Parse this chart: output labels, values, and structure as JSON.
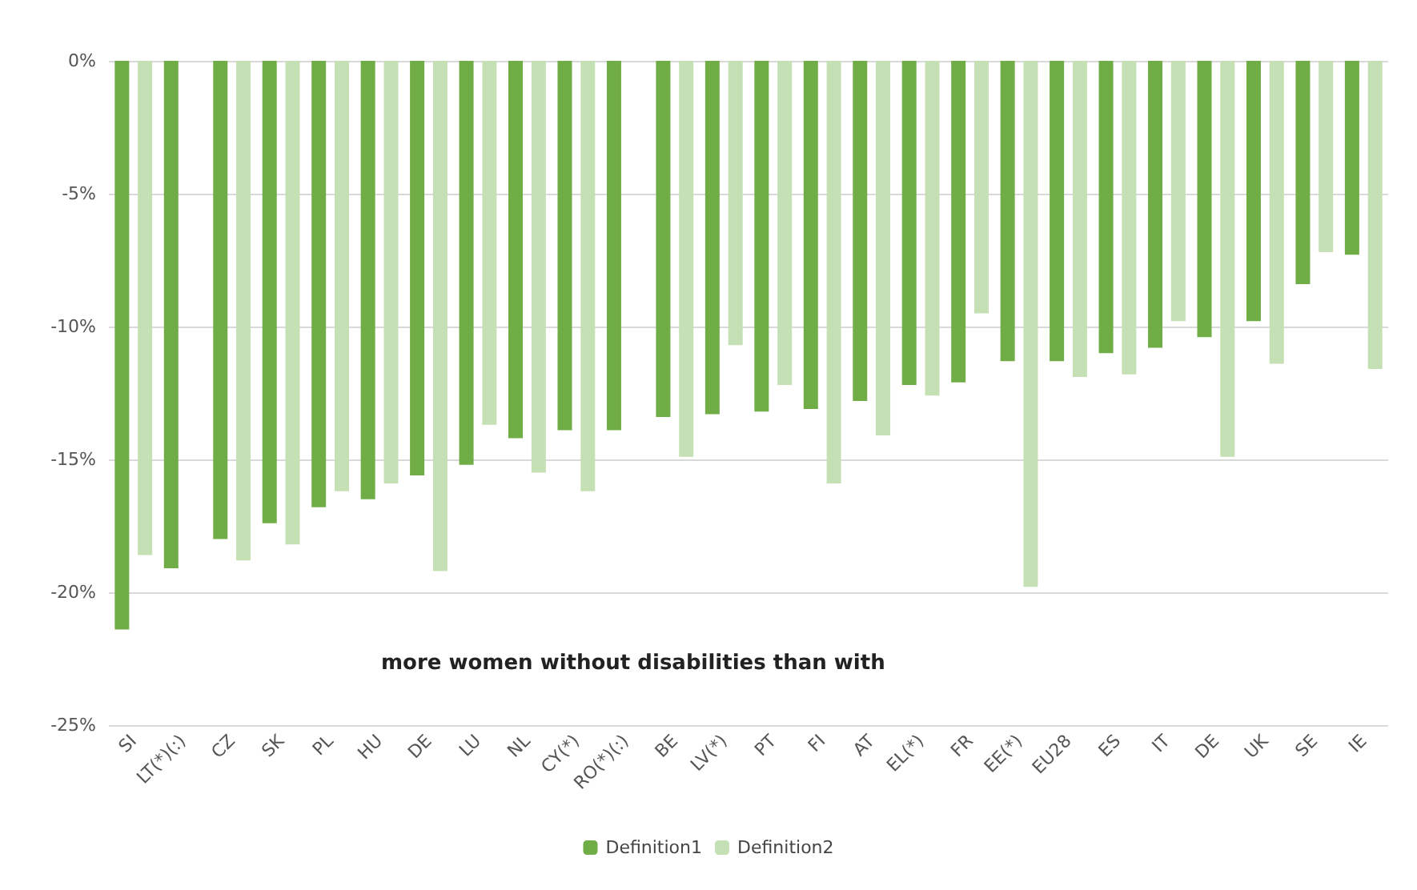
{
  "chart_data": {
    "type": "bar",
    "categories": [
      "SI",
      "LT(*)(:)",
      "CZ",
      "SK",
      "PL",
      "HU",
      "DE",
      "LU",
      "NL",
      "CY(*)",
      "RO(*)(:)",
      "BE",
      "LV(*)",
      "PT",
      "FI",
      "AT",
      "EL(*)",
      "FR",
      "EE(*)",
      "EU28",
      "ES",
      "IT",
      "DE",
      "UK",
      "SE",
      "IE"
    ],
    "series": [
      {
        "name": "Definition1",
        "color": "#70ad47",
        "values": [
          -21.4,
          -19.1,
          -18.0,
          -17.4,
          -16.8,
          -16.5,
          -15.6,
          -15.2,
          -14.2,
          -13.9,
          -13.9,
          -13.4,
          -13.3,
          -13.2,
          -13.1,
          -12.8,
          -12.2,
          -12.1,
          -11.3,
          -11.3,
          -11.0,
          -10.8,
          -10.4,
          -9.8,
          -8.4,
          -7.3
        ]
      },
      {
        "name": "Definition2",
        "color": "#c5e0b4",
        "values": [
          -18.6,
          null,
          -18.8,
          -18.2,
          -16.2,
          -15.9,
          -19.2,
          -13.7,
          -15.5,
          -16.2,
          null,
          -14.9,
          -10.7,
          -12.2,
          -15.9,
          -14.1,
          -12.6,
          -9.5,
          -19.8,
          -11.9,
          -11.8,
          -9.8,
          -14.9,
          -11.4,
          -7.2,
          -11.6
        ]
      }
    ],
    "ylim": [
      -25,
      0
    ],
    "yticks": [
      {
        "value": -25,
        "label": "-25%"
      },
      {
        "value": -20,
        "label": "-20%"
      },
      {
        "value": -15,
        "label": "-15%"
      },
      {
        "value": -10,
        "label": "-10%"
      },
      {
        "value": -5,
        "label": "-5%"
      },
      {
        "value": 0,
        "label": "0%"
      }
    ],
    "grid": "y",
    "legend": "bottom",
    "annotations": [
      "more women without disabilities than with"
    ]
  }
}
